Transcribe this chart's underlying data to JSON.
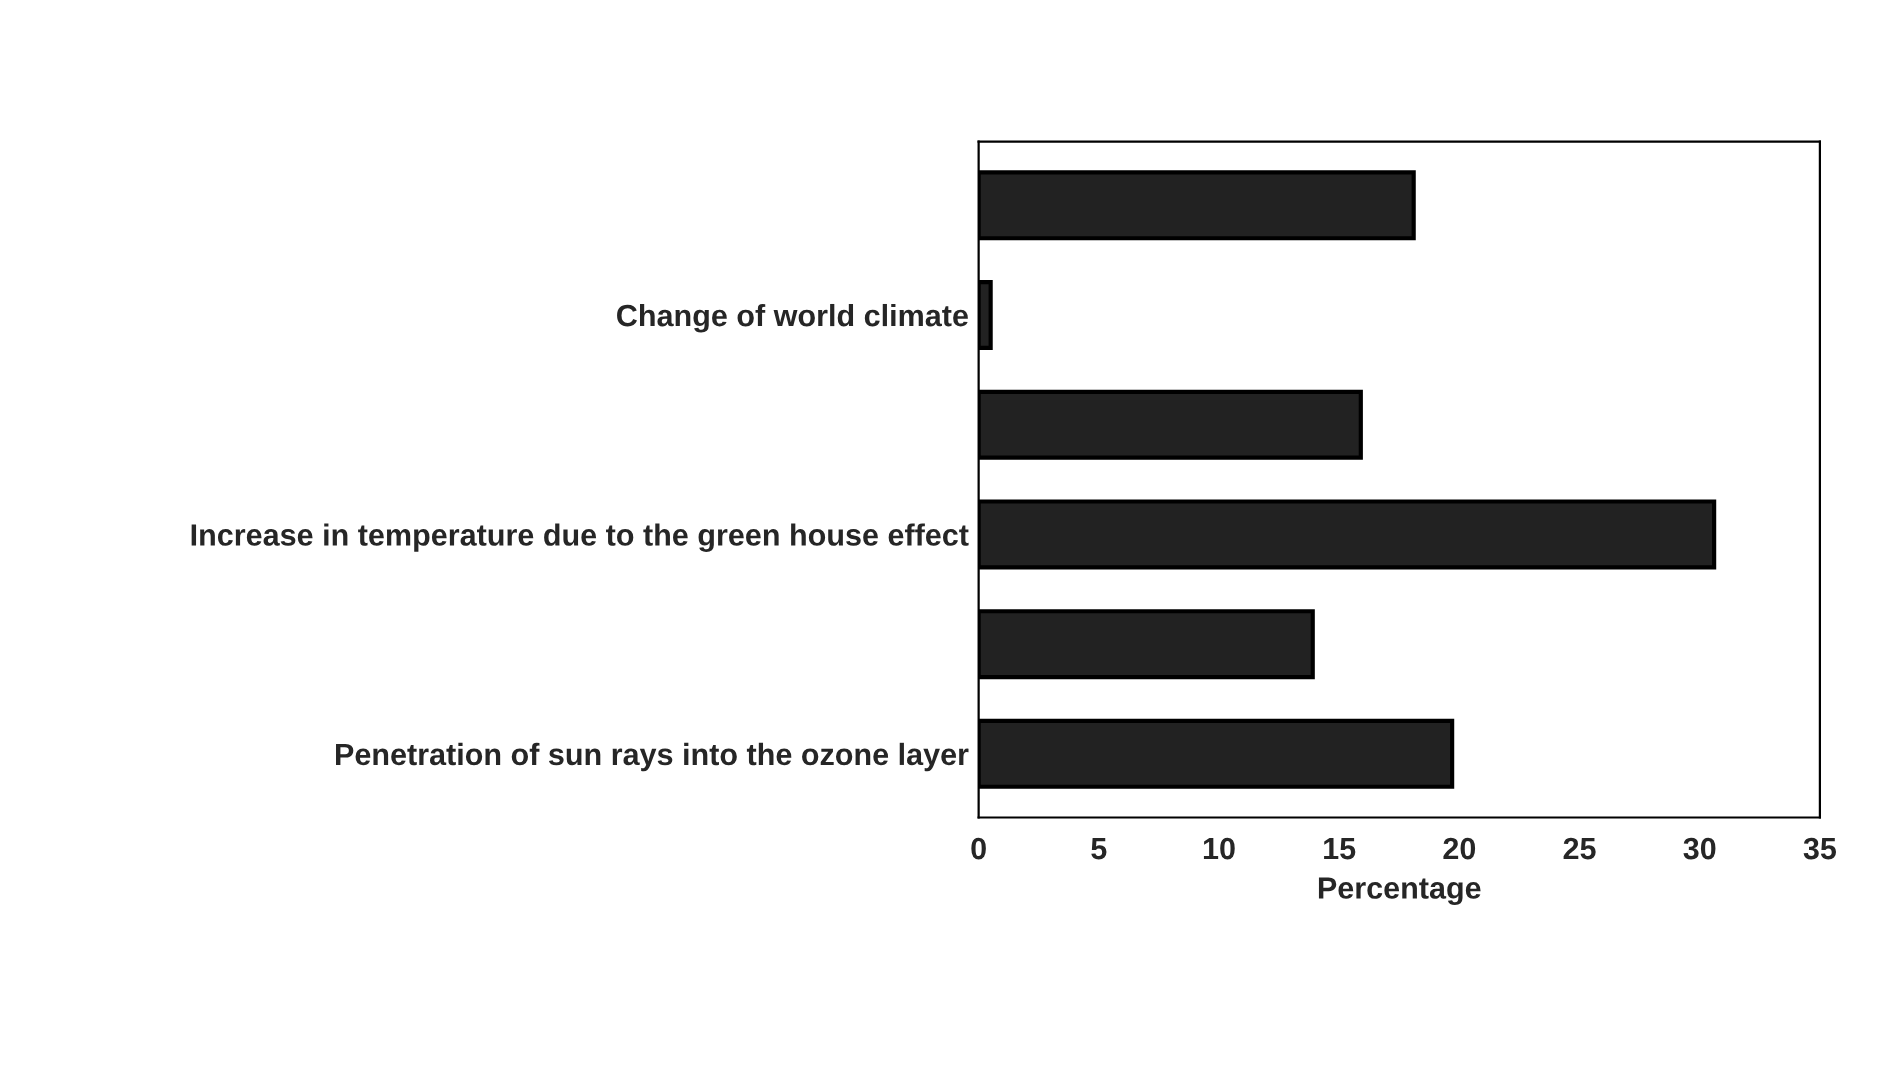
{
  "chart_data": {
    "type": "bar",
    "orientation": "horizontal",
    "xlabel": "Percentage",
    "categories": [
      null,
      "Change of world climate",
      null,
      "Increase in temperature due to the green house effect",
      null,
      "Penetration of sun rays into the ozone layer"
    ],
    "values": [
      18.1,
      0.5,
      15.9,
      30.6,
      13.9,
      19.7
    ],
    "color": "#222222",
    "xlim": [
      0,
      35
    ],
    "xticks": [
      0,
      5,
      10,
      15,
      20,
      25,
      30,
      35
    ],
    "grid": false
  }
}
